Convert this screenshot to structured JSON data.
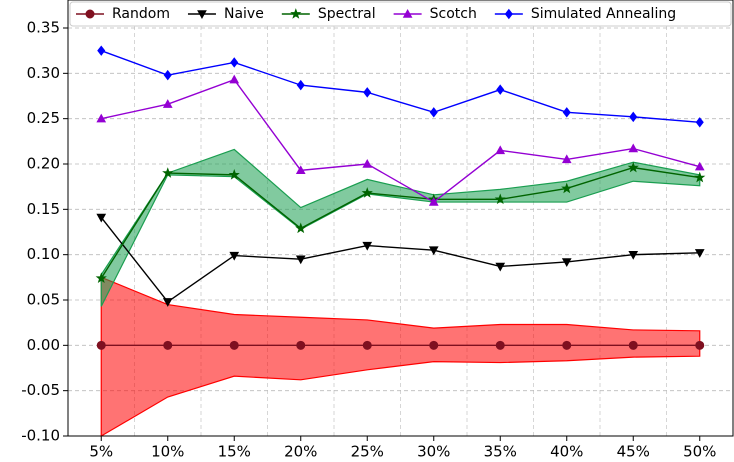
{
  "chart_data": {
    "type": "line",
    "categories": [
      "5%",
      "10%",
      "15%",
      "20%",
      "25%",
      "30%",
      "35%",
      "40%",
      "45%",
      "50%"
    ],
    "ylim": [
      -0.1,
      0.35
    ],
    "yticks": [
      {
        "value": -0.1,
        "label": "-0.10"
      },
      -0.05,
      {
        "value": 0,
        "label": "0.00"
      },
      0.05,
      {
        "value": 0.1,
        "label": "0.10"
      },
      0.15,
      {
        "value": 0.2,
        "label": "0.20"
      },
      0.25,
      {
        "value": 0.3,
        "label": "0.30"
      },
      0.35
    ],
    "grid": true,
    "legend": "top",
    "series": [
      {
        "name": "Random",
        "color": "#7f1020",
        "marker": "circle",
        "band_color": "#ff0000",
        "values": [
          0,
          0,
          0,
          0,
          0,
          0,
          0,
          0,
          0,
          0
        ],
        "band_high": [
          0.075,
          0.045,
          0.034,
          0.031,
          0.028,
          0.019,
          0.023,
          0.023,
          0.017,
          0.016
        ],
        "band_low": [
          -0.1,
          -0.057,
          -0.034,
          -0.038,
          -0.027,
          -0.018,
          -0.019,
          -0.017,
          -0.013,
          -0.012
        ]
      },
      {
        "name": "Naive",
        "color": "#000000",
        "marker": "triangle-down",
        "values": [
          0.141,
          0.048,
          0.099,
          0.095,
          0.11,
          0.105,
          0.087,
          0.092,
          0.1,
          0.102
        ]
      },
      {
        "name": "Spectral",
        "color": "#006400",
        "marker": "star",
        "band_color": "#1a9e50",
        "values": [
          0.074,
          0.19,
          0.188,
          0.129,
          0.168,
          0.161,
          0.161,
          0.173,
          0.196,
          0.185
        ],
        "band_high": [
          0.078,
          0.19,
          0.216,
          0.152,
          0.183,
          0.166,
          0.172,
          0.181,
          0.202,
          0.188
        ],
        "band_low": [
          0.043,
          0.188,
          0.186,
          0.128,
          0.167,
          0.158,
          0.158,
          0.158,
          0.181,
          0.176
        ]
      },
      {
        "name": "Scotch",
        "color": "#9400d3",
        "marker": "triangle-up",
        "values": [
          0.25,
          0.266,
          0.293,
          0.193,
          0.2,
          0.158,
          0.215,
          0.205,
          0.217,
          0.197
        ]
      },
      {
        "name": "Simulated Annealing",
        "color": "#0000ff",
        "marker": "diamond",
        "values": [
          0.325,
          0.298,
          0.312,
          0.287,
          0.279,
          0.257,
          0.282,
          0.257,
          0.252,
          0.246
        ]
      }
    ]
  }
}
